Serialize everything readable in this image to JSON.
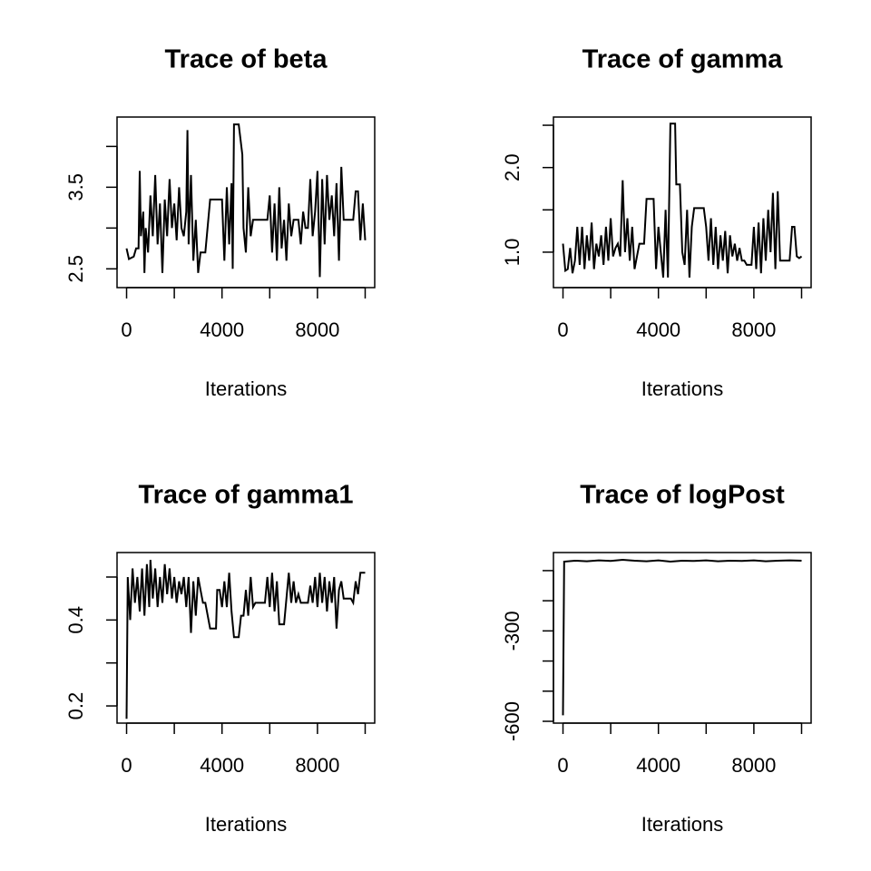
{
  "chart_data": [
    {
      "type": "line",
      "title": "Trace of beta",
      "x_label": "Iterations",
      "color": "#000000",
      "x": [
        0,
        100,
        300,
        400,
        500,
        550,
        600,
        700,
        750,
        800,
        900,
        1000,
        1100,
        1200,
        1300,
        1400,
        1500,
        1600,
        1700,
        1800,
        1900,
        2000,
        2100,
        2200,
        2300,
        2400,
        2500,
        2550,
        2600,
        2700,
        2800,
        2900,
        3000,
        3100,
        3200,
        3300,
        3500,
        3550,
        4000,
        4100,
        4200,
        4300,
        4400,
        4450,
        4500,
        4600,
        4700,
        4850,
        4900,
        5000,
        5100,
        5200,
        5300,
        5500,
        5900,
        6000,
        6100,
        6200,
        6300,
        6400,
        6500,
        6600,
        6700,
        6800,
        6900,
        7000,
        7200,
        7300,
        7400,
        7500,
        7600,
        7700,
        7800,
        7900,
        8000,
        8100,
        8200,
        8300,
        8400,
        8500,
        8600,
        8700,
        8800,
        8900,
        9000,
        9100,
        9500,
        9600,
        9700,
        9800,
        9900,
        10000
      ],
      "values": [
        2.75,
        2.62,
        2.65,
        2.75,
        2.75,
        3.7,
        2.9,
        3.2,
        2.45,
        3.0,
        2.7,
        3.4,
        2.9,
        3.65,
        2.8,
        3.3,
        2.45,
        3.35,
        2.9,
        3.6,
        3.0,
        3.3,
        2.85,
        3.5,
        3.0,
        2.9,
        3.2,
        4.2,
        2.8,
        3.65,
        2.6,
        3.1,
        2.45,
        2.7,
        2.7,
        2.7,
        3.35,
        3.35,
        3.35,
        2.6,
        3.5,
        2.8,
        3.55,
        2.5,
        4.27,
        4.27,
        4.27,
        3.9,
        3.0,
        2.7,
        3.5,
        2.9,
        3.1,
        3.1,
        3.1,
        3.4,
        2.7,
        3.3,
        2.6,
        3.5,
        2.75,
        3.1,
        2.6,
        3.3,
        2.9,
        3.1,
        3.1,
        2.8,
        3.2,
        3.0,
        3.0,
        3.6,
        2.9,
        3.2,
        3.7,
        2.4,
        3.6,
        2.8,
        3.65,
        3.1,
        3.4,
        2.9,
        3.55,
        2.6,
        3.75,
        3.1,
        3.1,
        3.45,
        3.45,
        2.85,
        3.3,
        2.85
      ],
      "xlim": [
        -400,
        10400
      ],
      "xticks": [
        0,
        4000,
        8000
      ],
      "xminorticks": [
        2000,
        6000,
        10000
      ],
      "ylim": [
        2.27,
        4.36
      ],
      "yticks": [
        2.5,
        3.5
      ],
      "yminorticks": [
        3.0,
        4.0
      ]
    },
    {
      "type": "line",
      "title": "Trace of gamma",
      "x_label": "Iterations",
      "color": "#000000",
      "x": [
        0,
        100,
        200,
        300,
        400,
        500,
        600,
        700,
        800,
        900,
        1000,
        1100,
        1200,
        1300,
        1400,
        1500,
        1600,
        1700,
        1800,
        1900,
        2000,
        2100,
        2200,
        2300,
        2400,
        2500,
        2600,
        2700,
        2800,
        2900,
        3000,
        3200,
        3400,
        3500,
        3800,
        3900,
        4000,
        4100,
        4200,
        4300,
        4400,
        4500,
        4700,
        4750,
        4900,
        5000,
        5100,
        5200,
        5300,
        5400,
        5500,
        5900,
        6000,
        6100,
        6200,
        6300,
        6400,
        6500,
        6600,
        6700,
        6800,
        6900,
        7000,
        7100,
        7200,
        7300,
        7400,
        7500,
        7600,
        7700,
        7900,
        8000,
        8100,
        8200,
        8300,
        8400,
        8500,
        8600,
        8700,
        8800,
        8900,
        9000,
        9100,
        9500,
        9600,
        9700,
        9800,
        9900,
        10000
      ],
      "values": [
        1.1,
        0.78,
        0.8,
        1.05,
        0.75,
        0.9,
        1.3,
        0.85,
        1.3,
        0.8,
        1.2,
        0.9,
        1.35,
        0.8,
        1.1,
        0.95,
        1.2,
        0.85,
        1.3,
        0.9,
        1.4,
        0.95,
        1.05,
        1.1,
        0.95,
        1.85,
        1.0,
        1.4,
        0.9,
        1.3,
        0.8,
        1.1,
        1.1,
        1.63,
        1.63,
        0.8,
        1.3,
        1.0,
        0.7,
        1.5,
        0.7,
        2.52,
        2.52,
        1.8,
        1.8,
        1.0,
        0.85,
        1.5,
        0.7,
        1.3,
        1.52,
        1.52,
        1.3,
        0.9,
        1.4,
        0.85,
        1.3,
        0.8,
        1.2,
        0.9,
        1.25,
        0.75,
        1.2,
        0.95,
        1.1,
        0.9,
        1.05,
        0.9,
        0.9,
        0.85,
        0.85,
        1.3,
        0.8,
        1.35,
        0.75,
        1.4,
        0.9,
        1.5,
        1.0,
        1.7,
        0.8,
        1.72,
        0.9,
        0.9,
        1.3,
        1.3,
        0.95,
        0.93,
        0.95
      ],
      "xlim": [
        -400,
        10400
      ],
      "xticks": [
        0,
        4000,
        8000
      ],
      "xminorticks": [
        2000,
        6000,
        10000
      ],
      "ylim": [
        0.581,
        2.597
      ],
      "yticks": [
        {
          "value": 1,
          "label": "1.0"
        },
        {
          "value": 2,
          "label": "2.0"
        }
      ],
      "yminorticks": [
        1.5,
        2.5
      ]
    },
    {
      "type": "line",
      "title": "Trace of gamma1",
      "x_label": "Iterations",
      "color": "#000000",
      "x": [
        0,
        50,
        150,
        250,
        350,
        450,
        550,
        650,
        750,
        850,
        950,
        1000,
        1100,
        1200,
        1300,
        1400,
        1500,
        1600,
        1700,
        1800,
        1900,
        2000,
        2100,
        2200,
        2300,
        2400,
        2500,
        2600,
        2700,
        2800,
        2900,
        3000,
        3100,
        3200,
        3300,
        3500,
        3750,
        3800,
        3900,
        4000,
        4100,
        4200,
        4300,
        4400,
        4500,
        4700,
        4800,
        4900,
        5000,
        5100,
        5200,
        5300,
        5400,
        5800,
        5900,
        6000,
        6100,
        6200,
        6300,
        6400,
        6600,
        6700,
        6800,
        6900,
        7000,
        7100,
        7200,
        7300,
        7600,
        7700,
        7800,
        7900,
        8000,
        8100,
        8200,
        8300,
        8400,
        8500,
        8600,
        8700,
        8800,
        8900,
        9000,
        9100,
        9400,
        9500,
        9600,
        9700,
        9800,
        10000
      ],
      "values": [
        0.17,
        0.5,
        0.4,
        0.52,
        0.44,
        0.5,
        0.42,
        0.52,
        0.41,
        0.53,
        0.43,
        0.54,
        0.45,
        0.52,
        0.43,
        0.5,
        0.44,
        0.53,
        0.46,
        0.52,
        0.45,
        0.5,
        0.44,
        0.49,
        0.46,
        0.5,
        0.43,
        0.5,
        0.37,
        0.49,
        0.41,
        0.5,
        0.47,
        0.44,
        0.44,
        0.38,
        0.38,
        0.47,
        0.47,
        0.43,
        0.49,
        0.43,
        0.51,
        0.42,
        0.36,
        0.36,
        0.41,
        0.41,
        0.47,
        0.41,
        0.5,
        0.43,
        0.44,
        0.44,
        0.5,
        0.43,
        0.51,
        0.42,
        0.49,
        0.39,
        0.39,
        0.45,
        0.51,
        0.44,
        0.49,
        0.44,
        0.46,
        0.44,
        0.44,
        0.48,
        0.44,
        0.5,
        0.43,
        0.51,
        0.44,
        0.5,
        0.42,
        0.49,
        0.44,
        0.5,
        0.38,
        0.47,
        0.49,
        0.45,
        0.45,
        0.44,
        0.49,
        0.46,
        0.51,
        0.51
      ],
      "xlim": [
        -400,
        10400
      ],
      "xticks": [
        0,
        4000,
        8000
      ],
      "xminorticks": [
        2000,
        6000,
        10000
      ],
      "ylim": [
        0.16,
        0.557
      ],
      "yticks": [
        0.2,
        0.4
      ],
      "yminorticks": [
        0.3,
        0.5
      ]
    },
    {
      "type": "line",
      "title": "Trace of logPost",
      "x_label": "Iterations",
      "color": "#000000",
      "x": [
        0,
        50,
        500,
        1000,
        1500,
        2000,
        2500,
        3000,
        3500,
        4000,
        4500,
        5000,
        5500,
        6000,
        6500,
        7000,
        7500,
        8000,
        8500,
        9000,
        9500,
        10000
      ],
      "values": [
        -580,
        -70,
        -67,
        -69,
        -66,
        -68,
        -64,
        -67,
        -69,
        -66,
        -70,
        -67,
        -68,
        -66,
        -69,
        -67,
        -68,
        -66,
        -69,
        -67,
        -66,
        -67
      ],
      "xlim": [
        -400,
        10400
      ],
      "xticks": [
        0,
        4000,
        8000
      ],
      "xminorticks": [
        2000,
        6000,
        10000
      ],
      "ylim": [
        -606,
        -40
      ],
      "yticks": [
        -600,
        -300
      ],
      "yminorticks": [
        -500,
        -400,
        -200,
        -100
      ]
    }
  ]
}
